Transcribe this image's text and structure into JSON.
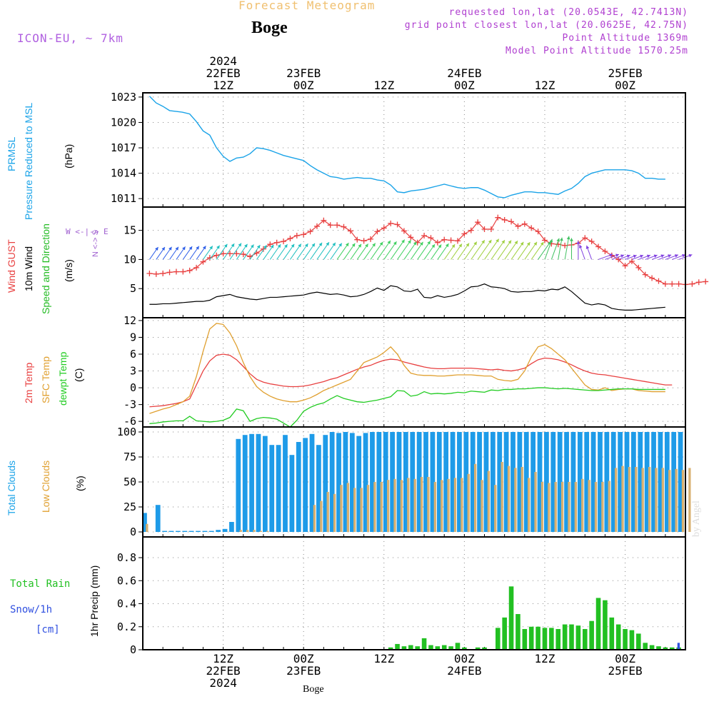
{
  "header": {
    "forecast_title": "Forecast Meteogram",
    "location": "Boge",
    "model": "ICON-EU, ~ 7km",
    "requested": "requested lon,lat (20.0543E, 42.7413N)",
    "grid_point": "grid point closest lon,lat (20.0625E, 42.75N)",
    "point_altitude": "Point Altitude 1369m",
    "model_altitude": "Model Point Altitude 1570.25m",
    "footer_location": "Boge",
    "credit": "by Angel"
  },
  "panel_labels": {
    "pressure_a": "PRMSL",
    "pressure_b": "Pressure Reduced to MSL",
    "pressure_unit": "(hPa)",
    "wind_a": "Wind GUST",
    "wind_b": "10m Wind",
    "wind_c": "Speed and Direction",
    "wind_unit": "(m/s)",
    "temp_a": "2m Temp",
    "temp_b": "SFC Temp",
    "temp_c": "dewpt Temp",
    "temp_unit": "(C)",
    "cloud_a": "Total Clouds",
    "cloud_b": "Low Clouds",
    "cloud_unit": "(%)",
    "precip_a": "Total  Rain",
    "precip_b": "Snow/1h",
    "precip_c": "[cm]",
    "precip_unit": "1hr Precip (mm)",
    "compass_ns": "N <-> S",
    "compass_we": "W <-|-> E"
  },
  "time_axis_top": [
    {
      "h": 12,
      "lines": [
        "2024",
        "22FEB",
        "12Z"
      ]
    },
    {
      "h": 24,
      "lines": [
        "23FEB",
        "00Z"
      ]
    },
    {
      "h": 36,
      "lines": [
        "12Z"
      ]
    },
    {
      "h": 48,
      "lines": [
        "24FEB",
        "00Z"
      ]
    },
    {
      "h": 60,
      "lines": [
        "12Z"
      ]
    },
    {
      "h": 72,
      "lines": [
        "25FEB",
        "00Z"
      ]
    }
  ],
  "time_axis_bottom": [
    {
      "h": 12,
      "lines": [
        "12Z",
        "22FEB",
        "2024"
      ]
    },
    {
      "h": 24,
      "lines": [
        "00Z",
        "23FEB"
      ]
    },
    {
      "h": 36,
      "lines": [
        "12Z"
      ]
    },
    {
      "h": 48,
      "lines": [
        "00Z",
        "24FEB"
      ]
    },
    {
      "h": 60,
      "lines": [
        "12Z"
      ]
    },
    {
      "h": 72,
      "lines": [
        "00Z",
        "25FEB"
      ]
    }
  ],
  "colors": {
    "pressure": "#1aa3e8",
    "gust": "#e84040",
    "wind_speed": "#000000",
    "t2m": "#e84040",
    "tsfc": "#e0a030",
    "dewpt": "#22cc22",
    "total_clouds": "#1e9be8",
    "low_clouds": "#d8b070",
    "rain": "#22c022",
    "snow": "#3050e0",
    "grid": "#888888"
  },
  "chart_data": [
    {
      "type": "line",
      "name": "pressure",
      "ylabel": "(hPa)",
      "ylim": [
        1010,
        1023.5
      ],
      "yticks": [
        1011,
        1014,
        1017,
        1020,
        1023
      ],
      "x_hours_start": 1,
      "series": [
        {
          "name": "PRMSL",
          "values": [
            1023.1,
            1022.3,
            1021.9,
            1021.4,
            1021.3,
            1021.2,
            1021.0,
            1020.1,
            1019.0,
            1018.5,
            1017.0,
            1016.0,
            1015.4,
            1015.8,
            1015.9,
            1016.3,
            1017.0,
            1016.9,
            1016.7,
            1016.4,
            1016.1,
            1015.9,
            1015.7,
            1015.5,
            1014.9,
            1014.4,
            1014.0,
            1013.6,
            1013.5,
            1013.3,
            1013.4,
            1013.5,
            1013.4,
            1013.4,
            1013.2,
            1013.1,
            1012.6,
            1011.8,
            1011.7,
            1011.9,
            1012.0,
            1012.1,
            1012.3,
            1012.5,
            1012.7,
            1012.5,
            1012.3,
            1012.2,
            1012.3,
            1012.3,
            1012.0,
            1011.6,
            1011.2,
            1011.1,
            1011.4,
            1011.6,
            1011.8,
            1011.8,
            1011.7,
            1011.7,
            1011.6,
            1011.5,
            1011.9,
            1012.2,
            1012.8,
            1013.6,
            1014.0,
            1014.2,
            1014.4,
            1014.4,
            1014.4,
            1014.4,
            1014.3,
            1014.0,
            1013.4,
            1013.4,
            1013.3,
            1013.3
          ]
        }
      ]
    },
    {
      "type": "line",
      "name": "wind",
      "ylabel": "(m/s)",
      "ylim": [
        0,
        19
      ],
      "yticks": [
        5,
        10,
        15
      ],
      "x_hours_start": 1,
      "series": [
        {
          "name": "Wind GUST",
          "values": [
            7.6,
            7.5,
            7.6,
            7.8,
            7.9,
            7.9,
            8.1,
            8.6,
            9.6,
            10.3,
            10.7,
            11.0,
            11.0,
            11.0,
            10.9,
            10.5,
            11.1,
            11.8,
            12.6,
            12.9,
            13.1,
            13.6,
            14.1,
            14.3,
            14.8,
            15.7,
            16.7,
            15.9,
            15.9,
            15.6,
            14.9,
            13.4,
            13.2,
            13.5,
            14.8,
            15.4,
            16.2,
            16.0,
            14.9,
            13.8,
            12.9,
            14.1,
            13.7,
            12.9,
            13.4,
            13.3,
            13.2,
            14.4,
            15.0,
            16.4,
            15.2,
            15.2,
            17.2,
            16.8,
            16.5,
            15.7,
            16.1,
            15.4,
            14.8,
            13.3,
            12.7,
            12.6,
            12.4,
            12.5,
            12.8,
            13.7,
            13.1,
            12.2,
            11.4,
            10.7,
            10.0,
            8.9,
            9.7,
            8.6,
            7.4,
            6.8,
            6.3,
            5.8,
            5.8,
            5.8,
            5.7,
            5.8,
            6.1,
            6.2
          ]
        },
        {
          "name": "10m Wind",
          "values": [
            2.3,
            2.3,
            2.4,
            2.4,
            2.5,
            2.6,
            2.7,
            2.8,
            2.8,
            3.0,
            3.6,
            3.8,
            4.0,
            3.6,
            3.4,
            3.2,
            3.1,
            3.3,
            3.5,
            3.5,
            3.6,
            3.7,
            3.8,
            3.9,
            4.2,
            4.4,
            4.2,
            4.0,
            4.1,
            3.9,
            3.6,
            3.7,
            4.0,
            4.5,
            5.1,
            4.7,
            5.5,
            5.3,
            4.6,
            4.5,
            4.9,
            3.5,
            3.4,
            3.8,
            3.5,
            3.7,
            4.0,
            4.6,
            5.3,
            5.4,
            5.8,
            5.3,
            5.2,
            5.0,
            4.5,
            4.4,
            4.5,
            4.5,
            4.7,
            4.6,
            4.9,
            4.8,
            5.3,
            4.5,
            3.5,
            2.5,
            2.2,
            2.4,
            2.2,
            1.6,
            1.4,
            1.3,
            1.3,
            1.4,
            1.5,
            1.6,
            1.7,
            1.8
          ]
        }
      ],
      "arrows_directions_deg": [
        215,
        215,
        215,
        215,
        215,
        215,
        215,
        215,
        215,
        215,
        215,
        215,
        215,
        215,
        215,
        215,
        215,
        215,
        215,
        215,
        215,
        215,
        215,
        215,
        215,
        215,
        215,
        215,
        215,
        215,
        215,
        215,
        215,
        215,
        215,
        215,
        215,
        215,
        215,
        215,
        215,
        215,
        215,
        215,
        215,
        215,
        215,
        215,
        215,
        215,
        215,
        215,
        215,
        215,
        215,
        215,
        215,
        215,
        215,
        200,
        200,
        190,
        190,
        180,
        180,
        160,
        160,
        250,
        250,
        250,
        250,
        250,
        250,
        250,
        250,
        250,
        250,
        250,
        250,
        250
      ]
    },
    {
      "type": "line",
      "name": "temperature",
      "ylabel": "(C)",
      "ylim": [
        -7,
        12.5
      ],
      "yticks": [
        -6,
        -3,
        0,
        3,
        6,
        9,
        12
      ],
      "x_hours_start": 1,
      "series": [
        {
          "name": "2m Temp",
          "values": [
            -3.4,
            -3.3,
            -3.2,
            -3.0,
            -2.8,
            -2.5,
            -2.0,
            0.5,
            3.0,
            4.8,
            5.8,
            6.0,
            5.8,
            5.0,
            3.8,
            2.5,
            1.5,
            1.0,
            0.7,
            0.5,
            0.3,
            0.2,
            0.2,
            0.3,
            0.5,
            0.8,
            1.1,
            1.5,
            1.8,
            2.3,
            2.8,
            3.3,
            3.7,
            4.0,
            4.5,
            4.9,
            5.1,
            5.0,
            4.6,
            4.3,
            4.0,
            3.7,
            3.5,
            3.4,
            3.4,
            3.5,
            3.5,
            3.5,
            3.5,
            3.4,
            3.3,
            3.2,
            3.3,
            3.1,
            3.0,
            3.2,
            3.5,
            4.3,
            5.0,
            5.3,
            5.2,
            5.0,
            4.6,
            4.1,
            3.5,
            3.0,
            2.6,
            2.4,
            2.3,
            2.1,
            1.9,
            1.7,
            1.5,
            1.3,
            1.1,
            0.9,
            0.7,
            0.5,
            0.5
          ]
        },
        {
          "name": "SFC Temp",
          "values": [
            -4.6,
            -4.2,
            -3.8,
            -3.5,
            -3.0,
            -2.5,
            -1.5,
            2.0,
            6.5,
            10.5,
            11.5,
            11.3,
            9.8,
            7.5,
            4.5,
            2.0,
            0.2,
            -0.8,
            -1.5,
            -2.0,
            -2.3,
            -2.5,
            -2.5,
            -2.2,
            -1.8,
            -1.2,
            -0.5,
            0.0,
            0.5,
            1.0,
            1.5,
            3.0,
            4.5,
            5.0,
            5.5,
            6.3,
            7.3,
            6.0,
            4.0,
            2.6,
            2.3,
            2.2,
            2.2,
            2.1,
            2.1,
            2.2,
            2.3,
            2.3,
            2.3,
            2.2,
            2.1,
            2.1,
            1.5,
            1.3,
            1.2,
            1.5,
            3.0,
            5.5,
            7.3,
            7.7,
            7.0,
            6.0,
            5.0,
            3.5,
            2.0,
            0.5,
            -0.3,
            -0.4,
            0.0,
            -0.5,
            -0.3,
            -0.2,
            -0.2,
            -0.5,
            -0.6,
            -0.7,
            -0.7,
            -0.7
          ]
        },
        {
          "name": "dewpt Temp",
          "values": [
            -6.4,
            -6.3,
            -6.1,
            -6.0,
            -5.9,
            -5.9,
            -5.1,
            -5.9,
            -6.0,
            -6.1,
            -6.0,
            -5.8,
            -5.3,
            -3.8,
            -4.1,
            -6.0,
            -5.5,
            -5.3,
            -5.4,
            -5.6,
            -6.3,
            -7.0,
            -5.8,
            -4.2,
            -3.5,
            -3.0,
            -2.7,
            -2.0,
            -1.4,
            -1.9,
            -2.2,
            -2.5,
            -2.6,
            -2.4,
            -2.2,
            -1.9,
            -1.6,
            -0.5,
            -0.6,
            -1.5,
            -1.3,
            -0.7,
            -1.1,
            -1.0,
            -1.1,
            -1.0,
            -0.8,
            -0.9,
            -0.6,
            -0.7,
            -0.8,
            -0.4,
            -0.5,
            -0.3,
            -0.3,
            -0.2,
            -0.2,
            -0.1,
            0.0,
            0.0,
            -0.1,
            -0.2,
            -0.1,
            -0.2,
            -0.3,
            -0.4,
            -0.5,
            -0.5,
            -0.4,
            -0.3,
            -0.2,
            -0.2,
            -0.2,
            -0.3,
            -0.3,
            -0.3,
            -0.3,
            -0.3
          ]
        }
      ]
    },
    {
      "type": "bar",
      "name": "clouds",
      "ylabel": "(%)",
      "ylim": [
        -5,
        105
      ],
      "yticks": [
        0,
        25,
        50,
        75,
        100
      ],
      "x_hours_start": 0,
      "series": [
        {
          "name": "Total Clouds",
          "values": [
            19,
            0,
            27,
            1,
            1,
            1,
            1,
            1,
            1,
            1,
            1,
            2,
            3,
            10,
            93,
            97,
            98,
            98,
            96,
            87,
            87,
            97,
            77,
            90,
            94,
            98,
            87,
            97,
            100,
            99,
            100,
            99,
            96,
            99,
            100,
            100,
            100,
            100,
            100,
            100,
            100,
            100,
            100,
            100,
            100,
            100,
            100,
            100,
            100,
            100,
            100,
            100,
            100,
            100,
            100,
            100,
            100,
            100,
            100,
            100,
            100,
            100,
            100,
            100,
            100,
            100,
            100,
            100,
            100,
            100,
            100,
            100,
            100,
            100,
            100,
            100,
            100,
            100,
            100,
            100,
            100
          ]
        },
        {
          "name": "Low Clouds",
          "values": [
            8,
            0,
            0,
            0,
            0,
            0,
            0,
            0,
            0,
            0,
            0,
            0,
            0,
            0,
            2,
            2,
            2,
            1,
            1,
            0,
            0,
            0,
            0,
            0,
            0,
            27,
            31,
            40,
            38,
            47,
            49,
            44,
            44,
            47,
            50,
            50,
            52,
            53,
            52,
            54,
            53,
            55,
            55,
            50,
            52,
            53,
            54,
            54,
            58,
            68,
            52,
            61,
            47,
            70,
            66,
            64,
            65,
            54,
            60,
            50,
            49,
            50,
            50,
            50,
            50,
            53,
            52,
            50,
            50,
            51,
            64,
            66,
            65,
            65,
            64,
            65,
            64,
            64,
            62,
            63,
            62,
            64
          ]
        }
      ]
    },
    {
      "type": "bar",
      "name": "precipitation",
      "ylabel": "1hr Precip (mm)",
      "ylim": [
        0,
        0.98
      ],
      "yticks": [
        0,
        0.2,
        0.4,
        0.6,
        0.8
      ],
      "x_hours_start": 1,
      "series": [
        {
          "name": "Total Rain",
          "values": [
            0,
            0,
            0,
            0,
            0,
            0,
            0,
            0,
            0,
            0,
            0,
            0,
            0,
            0,
            0,
            0,
            0,
            0,
            0,
            0,
            0,
            0,
            0,
            0,
            0,
            0,
            0,
            0,
            0,
            0,
            0,
            0,
            0,
            0,
            0,
            0,
            0.02,
            0.05,
            0.03,
            0.04,
            0.03,
            0.1,
            0.04,
            0.03,
            0.04,
            0.03,
            0.06,
            0.02,
            0.0,
            0.02,
            0.02,
            0.0,
            0.19,
            0.28,
            0.55,
            0.31,
            0.18,
            0.2,
            0.2,
            0.19,
            0.19,
            0.18,
            0.22,
            0.22,
            0.21,
            0.18,
            0.25,
            0.45,
            0.43,
            0.28,
            0.22,
            0.18,
            0.17,
            0.14,
            0.06,
            0.04,
            0.03,
            0.02,
            0.02,
            0.02
          ]
        },
        {
          "name": "Snow/1h",
          "values": [
            0,
            0,
            0,
            0,
            0,
            0,
            0,
            0,
            0,
            0,
            0,
            0,
            0,
            0,
            0,
            0,
            0,
            0,
            0,
            0,
            0,
            0,
            0,
            0,
            0,
            0,
            0,
            0,
            0,
            0,
            0,
            0,
            0,
            0,
            0,
            0,
            0,
            0,
            0,
            0,
            0,
            0,
            0,
            0,
            0,
            0,
            0,
            0,
            0,
            0,
            0,
            0,
            0,
            0,
            0,
            0,
            0,
            0,
            0,
            0,
            0,
            0,
            0,
            0,
            0,
            0,
            0,
            0,
            0,
            0,
            0,
            0,
            0,
            0,
            0,
            0,
            0,
            0,
            0,
            0.06
          ]
        }
      ]
    }
  ]
}
